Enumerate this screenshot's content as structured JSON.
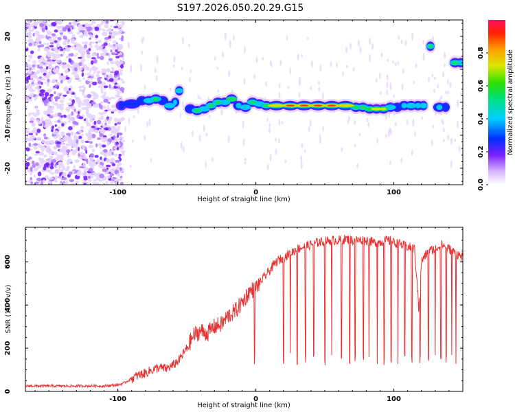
{
  "title": "S197.2026.050.20.29.G15",
  "chart_data": [
    {
      "type": "heatmap",
      "xlabel": "Height of straight line (km)",
      "ylabel": "Frequency (Hz)",
      "xlim": [
        -167,
        150
      ],
      "ylim": [
        -25,
        25
      ],
      "xticks": [
        -100,
        0,
        100
      ],
      "yticks": [
        20,
        10,
        0,
        -10,
        -20
      ],
      "colorbar": {
        "label": "Normalized spectral amplitude",
        "ticks": [
          0.0,
          0.2,
          0.4,
          0.6,
          0.8
        ],
        "range": [
          0,
          1
        ]
      },
      "ridge": [
        {
          "x": -100,
          "f": -1,
          "a": 0.35
        },
        {
          "x": -95,
          "f": -0.5,
          "a": 0.4
        },
        {
          "x": -85,
          "f": 0.5,
          "a": 0.45
        },
        {
          "x": -80,
          "f": 0.5,
          "a": 0.55
        },
        {
          "x": -75,
          "f": 1,
          "a": 0.65
        },
        {
          "x": -70,
          "f": 0.5,
          "a": 0.45
        },
        {
          "x": -65,
          "f": -1,
          "a": 0.55
        },
        {
          "x": -60,
          "f": 0,
          "a": 0.5
        },
        {
          "x": -57,
          "f": 3.5,
          "a": 0.6
        },
        {
          "x": -50,
          "f": -2,
          "a": 0.4
        },
        {
          "x": -45,
          "f": -2.5,
          "a": 0.65
        },
        {
          "x": -40,
          "f": -2,
          "a": 0.55
        },
        {
          "x": -35,
          "f": -1,
          "a": 0.7
        },
        {
          "x": -30,
          "f": 0,
          "a": 0.7
        },
        {
          "x": -25,
          "f": 0,
          "a": 0.6
        },
        {
          "x": -20,
          "f": 1,
          "a": 0.75
        },
        {
          "x": -15,
          "f": -1,
          "a": 0.5
        },
        {
          "x": -10,
          "f": -1.5,
          "a": 0.6
        },
        {
          "x": -5,
          "f": 0,
          "a": 0.65
        },
        {
          "x": 0,
          "f": -0.5,
          "a": 0.55
        },
        {
          "x": 5,
          "f": -1,
          "a": 0.7
        },
        {
          "x": 10,
          "f": -1,
          "a": 0.85
        },
        {
          "x": 20,
          "f": -1,
          "a": 0.9
        },
        {
          "x": 30,
          "f": -1,
          "a": 0.95
        },
        {
          "x": 40,
          "f": -1,
          "a": 0.95
        },
        {
          "x": 50,
          "f": -1,
          "a": 0.95
        },
        {
          "x": 60,
          "f": -1,
          "a": 0.85
        },
        {
          "x": 70,
          "f": -1.5,
          "a": 0.7
        },
        {
          "x": 75,
          "f": -1.5,
          "a": 0.65
        },
        {
          "x": 80,
          "f": -2,
          "a": 0.75
        },
        {
          "x": 85,
          "f": -2,
          "a": 0.85
        },
        {
          "x": 90,
          "f": -2,
          "a": 0.8
        },
        {
          "x": 95,
          "f": -1.5,
          "a": 0.55
        },
        {
          "x": 100,
          "f": -1.5,
          "a": 0.45
        },
        {
          "x": 105,
          "f": -1,
          "a": 0.5
        },
        {
          "x": 110,
          "f": -1,
          "a": 0.55
        },
        {
          "x": 115,
          "f": -1,
          "a": 0.5
        },
        {
          "x": 120,
          "f": -1,
          "a": 0.55
        },
        {
          "x": 125,
          "f": 17,
          "a": 0.65
        },
        {
          "x": 130,
          "f": -1.5,
          "a": 0.5
        },
        {
          "x": 136,
          "f": -1.5,
          "a": 0.45
        },
        {
          "x": 142,
          "f": 12,
          "a": 0.65
        },
        {
          "x": 147,
          "f": 12,
          "a": 0.55
        }
      ]
    },
    {
      "type": "line",
      "xlabel": "Height of straight line (km)",
      "ylabel": "SNR (10 * v/v)",
      "xlim": [
        -167,
        150
      ],
      "ylim": [
        0,
        760
      ],
      "xticks": [
        -100,
        0,
        100
      ],
      "yticks": [
        0,
        200,
        400,
        600
      ],
      "series": [
        {
          "name": "SNR",
          "color": "#e83030",
          "x": [
            -167,
            -150,
            -130,
            -110,
            -100,
            -95,
            -90,
            -85,
            -80,
            -75,
            -70,
            -65,
            -60,
            -55,
            -50,
            -45,
            -40,
            -35,
            -30,
            -25,
            -20,
            -15,
            -10,
            -5,
            0,
            5,
            10,
            15,
            20,
            25,
            30,
            35,
            40,
            45,
            50,
            55,
            60,
            65,
            70,
            75,
            80,
            85,
            90,
            95,
            100,
            105,
            110,
            115,
            118,
            120,
            125,
            130,
            135,
            140,
            145,
            150
          ],
          "y": [
            25,
            25,
            25,
            25,
            30,
            40,
            60,
            75,
            85,
            100,
            110,
            105,
            120,
            150,
            200,
            260,
            280,
            270,
            300,
            310,
            350,
            370,
            410,
            460,
            480,
            520,
            560,
            600,
            620,
            640,
            660,
            670,
            680,
            690,
            695,
            700,
            700,
            705,
            700,
            700,
            700,
            690,
            690,
            700,
            690,
            680,
            670,
            660,
            400,
            600,
            650,
            660,
            680,
            660,
            640,
            620
          ]
        }
      ],
      "dropouts": [
        -1,
        20,
        25,
        30,
        36,
        42,
        50,
        55,
        62,
        68,
        72,
        78,
        82,
        88,
        93,
        98,
        103,
        108,
        113,
        119,
        125,
        130,
        134,
        138,
        142,
        145
      ]
    }
  ]
}
